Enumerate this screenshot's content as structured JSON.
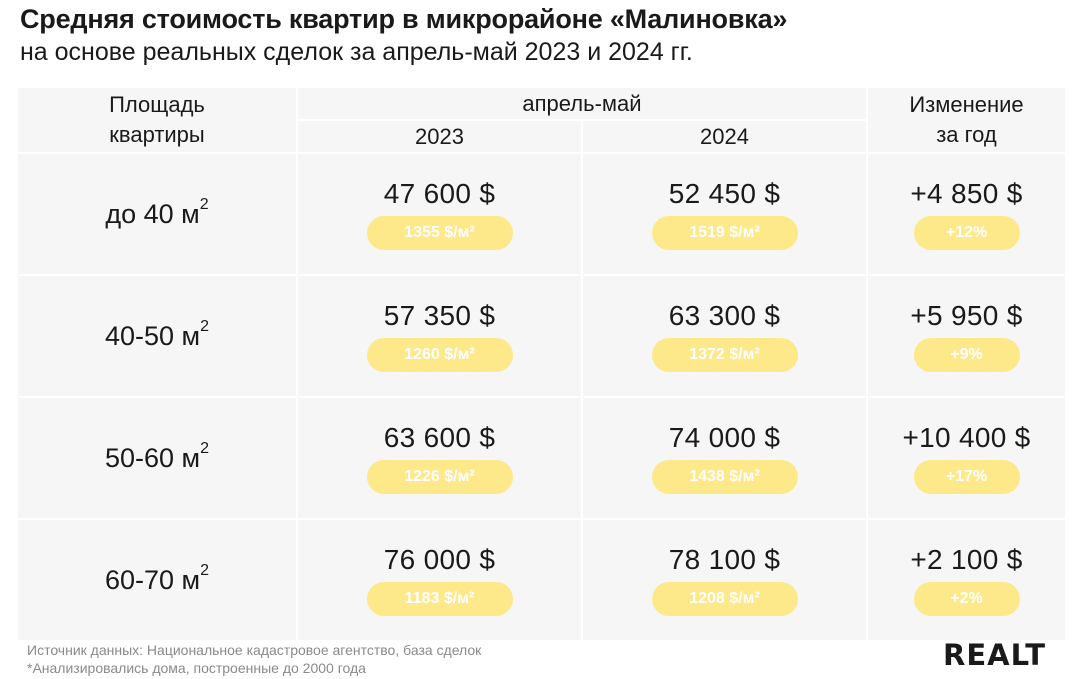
{
  "title": "Средняя стоимость квартир в микрорайоне «Малиновка»",
  "subtitle": "на основе реальных сделок за апрель-май 2023 и 2024 гг.",
  "headers": {
    "area_line1": "Площадь",
    "area_line2": "квартиры",
    "period": "апрель-май",
    "year1": "2023",
    "year2": "2024",
    "change_line1": "Изменение",
    "change_line2": "за год"
  },
  "chart_data": {
    "type": "table",
    "unit_sup": "2",
    "rows": [
      {
        "area": "до 40 м",
        "price_2023": "47 600 $",
        "per_m2_2023": "1355 $/м²",
        "price_2024": "52 450 $",
        "per_m2_2024": "1519 $/м²",
        "change": "+4 850 $",
        "change_pct": "+12%"
      },
      {
        "area": "40-50 м",
        "price_2023": "57 350 $",
        "per_m2_2023": "1260 $/м²",
        "price_2024": "63 300 $",
        "per_m2_2024": "1372 $/м²",
        "change": "+5 950 $",
        "change_pct": "+9%"
      },
      {
        "area": "50-60 м",
        "price_2023": "63 600 $",
        "per_m2_2023": "1226 $/м²",
        "price_2024": "74 000 $",
        "per_m2_2024": "1438 $/м²",
        "change": "+10 400 $",
        "change_pct": "+17%"
      },
      {
        "area": "60-70 м",
        "price_2023": "76 000 $",
        "per_m2_2023": "1183 $/м²",
        "price_2024": "78 100 $",
        "per_m2_2024": "1208 $/м²",
        "change": "+2 100 $",
        "change_pct": "+2%"
      }
    ]
  },
  "footer": {
    "source": "Источник данных: Национальное кадастровое агентство, база сделок",
    "note": "*Анализировались дома, построенные до 2000 года"
  },
  "logo_text": "REALT",
  "colors": {
    "pill": "#fde88a",
    "cell": "#f6f6f6"
  }
}
